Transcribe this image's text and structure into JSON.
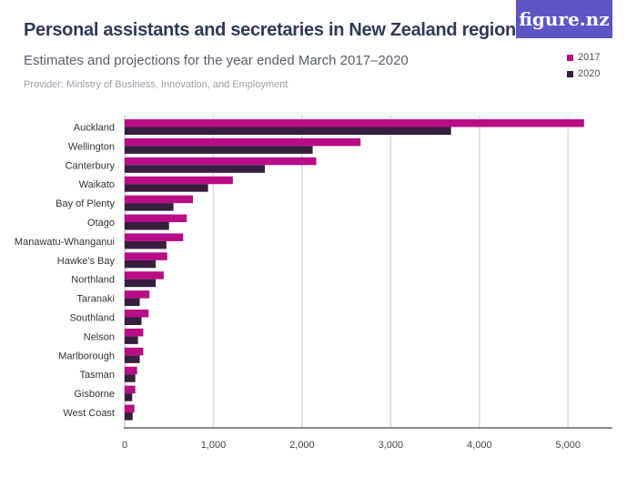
{
  "header": {
    "title": "Personal assistants and secretaries in New Zealand regions",
    "subtitle": "Estimates and projections for the year ended March 2017–2020",
    "provider": "Provider: Ministry of Business, Innovation, and Employment",
    "logo": "figure.nz"
  },
  "chart_data": {
    "type": "bar",
    "orientation": "horizontal",
    "categories": [
      "Auckland",
      "Wellington",
      "Canterbury",
      "Waikato",
      "Bay of Plenty",
      "Otago",
      "Manawatu-Whanganui",
      "Hawke's Bay",
      "Northland",
      "Taranaki",
      "Southland",
      "Nelson",
      "Marlborough",
      "Tasman",
      "Gisborne",
      "West Coast"
    ],
    "series": [
      {
        "name": "2017",
        "color": "#b90c87",
        "values": [
          5180,
          2660,
          2160,
          1220,
          770,
          700,
          660,
          480,
          440,
          280,
          270,
          210,
          210,
          140,
          120,
          110
        ]
      },
      {
        "name": "2020",
        "color": "#361e3c",
        "values": [
          3680,
          2120,
          1580,
          940,
          550,
          500,
          470,
          350,
          350,
          170,
          190,
          150,
          170,
          120,
          85,
          90
        ]
      }
    ],
    "xlim": [
      0,
      5500
    ],
    "xticks": [
      0,
      1000,
      2000,
      3000,
      4000,
      5000
    ],
    "xtick_labels": [
      "0",
      "1,000",
      "2,000",
      "3,000",
      "4,000",
      "5,000"
    ],
    "grid": true,
    "legend": "top-right"
  }
}
